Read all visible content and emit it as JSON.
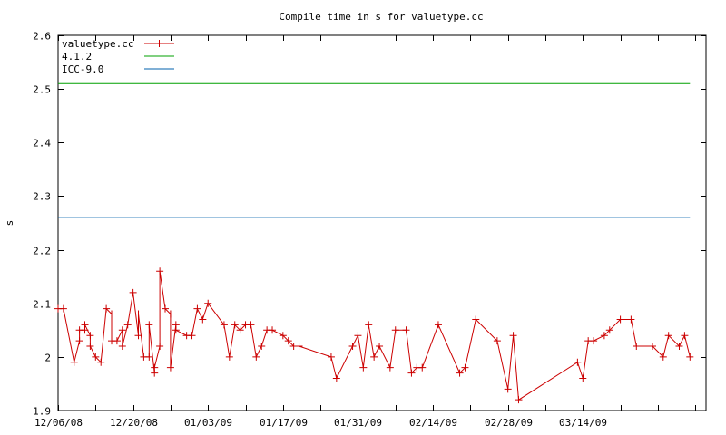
{
  "chart_data": {
    "type": "line",
    "title": "Compile time in s for valuetype.cc",
    "xlabel": "",
    "ylabel": "s",
    "ylim": [
      1.9,
      2.6
    ],
    "xlim": [
      "2008-12-06",
      "2009-04-06"
    ],
    "x_ticks": [
      "12/06/08",
      "12/20/08",
      "01/03/09",
      "01/17/09",
      "01/31/09",
      "02/14/09",
      "02/28/09",
      "03/14/09"
    ],
    "y_ticks": [
      "1.9",
      "2",
      "2.1",
      "2.2",
      "2.3",
      "2.4",
      "2.5",
      "2.6"
    ],
    "grid": false,
    "legend_position": "top-left",
    "series": [
      {
        "name": "valuetype.cc",
        "color": "#cc0000",
        "marker": "plus",
        "points": [
          [
            "2008-12-06",
            2.09
          ],
          [
            "2008-12-07",
            2.09
          ],
          [
            "2008-12-09",
            1.99
          ],
          [
            "2008-12-10",
            2.03
          ],
          [
            "2008-12-10",
            2.05
          ],
          [
            "2008-12-11",
            2.05
          ],
          [
            "2008-12-11",
            2.06
          ],
          [
            "2008-12-12",
            2.04
          ],
          [
            "2008-12-12",
            2.02
          ],
          [
            "2008-12-13",
            2.0
          ],
          [
            "2008-12-14",
            1.99
          ],
          [
            "2008-12-15",
            2.09
          ],
          [
            "2008-12-16",
            2.08
          ],
          [
            "2008-12-16",
            2.03
          ],
          [
            "2008-12-17",
            2.03
          ],
          [
            "2008-12-18",
            2.05
          ],
          [
            "2008-12-18",
            2.02
          ],
          [
            "2008-12-19",
            2.06
          ],
          [
            "2008-12-20",
            2.12
          ],
          [
            "2008-12-21",
            2.04
          ],
          [
            "2008-12-21",
            2.08
          ],
          [
            "2008-12-22",
            2.0
          ],
          [
            "2008-12-23",
            2.0
          ],
          [
            "2008-12-23",
            2.06
          ],
          [
            "2008-12-24",
            1.97
          ],
          [
            "2008-12-24",
            1.98
          ],
          [
            "2008-12-25",
            2.02
          ],
          [
            "2008-12-25",
            2.16
          ],
          [
            "2008-12-26",
            2.09
          ],
          [
            "2008-12-27",
            2.08
          ],
          [
            "2008-12-27",
            1.98
          ],
          [
            "2008-12-28",
            2.06
          ],
          [
            "2008-12-28",
            2.05
          ],
          [
            "2008-12-30",
            2.04
          ],
          [
            "2008-12-31",
            2.04
          ],
          [
            "2009-01-01",
            2.09
          ],
          [
            "2009-01-02",
            2.07
          ],
          [
            "2009-01-03",
            2.1
          ],
          [
            "2009-01-06",
            2.06
          ],
          [
            "2009-01-07",
            2.0
          ],
          [
            "2009-01-08",
            2.06
          ],
          [
            "2009-01-09",
            2.05
          ],
          [
            "2009-01-10",
            2.06
          ],
          [
            "2009-01-11",
            2.06
          ],
          [
            "2009-01-12",
            2.0
          ],
          [
            "2009-01-13",
            2.02
          ],
          [
            "2009-01-14",
            2.05
          ],
          [
            "2009-01-15",
            2.05
          ],
          [
            "2009-01-17",
            2.04
          ],
          [
            "2009-01-18",
            2.03
          ],
          [
            "2009-01-19",
            2.02
          ],
          [
            "2009-01-20",
            2.02
          ],
          [
            "2009-01-26",
            2.0
          ],
          [
            "2009-01-27",
            1.96
          ],
          [
            "2009-01-30",
            2.02
          ],
          [
            "2009-01-31",
            2.04
          ],
          [
            "2009-02-01",
            1.98
          ],
          [
            "2009-02-02",
            2.06
          ],
          [
            "2009-02-03",
            2.0
          ],
          [
            "2009-02-04",
            2.02
          ],
          [
            "2009-02-06",
            1.98
          ],
          [
            "2009-02-07",
            2.05
          ],
          [
            "2009-02-09",
            2.05
          ],
          [
            "2009-02-10",
            1.97
          ],
          [
            "2009-02-11",
            1.98
          ],
          [
            "2009-02-12",
            1.98
          ],
          [
            "2009-02-15",
            2.06
          ],
          [
            "2009-02-19",
            1.97
          ],
          [
            "2009-02-20",
            1.98
          ],
          [
            "2009-02-22",
            2.07
          ],
          [
            "2009-02-26",
            2.03
          ],
          [
            "2009-02-28",
            1.94
          ],
          [
            "2009-03-01",
            2.04
          ],
          [
            "2009-03-02",
            1.92
          ],
          [
            "2009-03-13",
            1.99
          ],
          [
            "2009-03-14",
            1.96
          ],
          [
            "2009-03-15",
            2.03
          ],
          [
            "2009-03-16",
            2.03
          ],
          [
            "2009-03-18",
            2.04
          ],
          [
            "2009-03-19",
            2.05
          ],
          [
            "2009-03-21",
            2.07
          ],
          [
            "2009-03-23",
            2.07
          ],
          [
            "2009-03-24",
            2.02
          ],
          [
            "2009-03-27",
            2.02
          ],
          [
            "2009-03-29",
            2.0
          ],
          [
            "2009-03-30",
            2.04
          ],
          [
            "2009-04-01",
            2.02
          ],
          [
            "2009-04-02",
            2.04
          ],
          [
            "2009-04-03",
            2.0
          ]
        ]
      },
      {
        "name": "4.1.2",
        "color": "#00a000",
        "marker": "none",
        "points": [
          [
            "2008-12-06",
            2.51
          ],
          [
            "2009-04-03",
            2.51
          ]
        ]
      },
      {
        "name": "ICC-9.0",
        "color": "#0060ad",
        "marker": "none",
        "points": [
          [
            "2008-12-06",
            2.26
          ],
          [
            "2009-04-03",
            2.26
          ]
        ]
      }
    ]
  }
}
